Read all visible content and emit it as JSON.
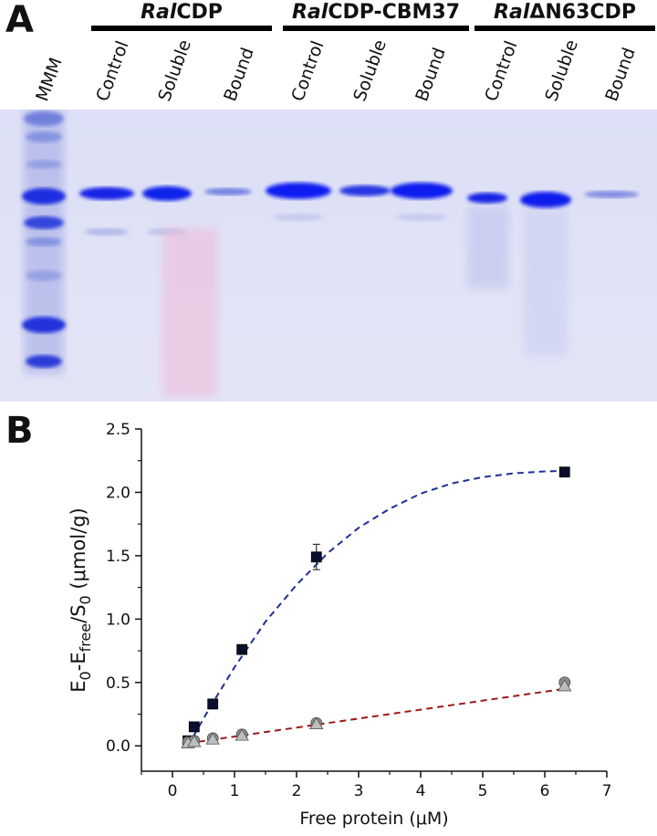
{
  "panel_a": {
    "letter": "A",
    "groups": [
      {
        "prefix": "Ral",
        "suffix": "CDP"
      },
      {
        "prefix": "Ral",
        "suffix": "CDP-CBM37"
      },
      {
        "prefix": "Ral",
        "suffix": "ΔN63CDP"
      }
    ],
    "lanes": [
      "MMM",
      "Control",
      "Soluble",
      "Bound",
      "Control",
      "Soluble",
      "Bound",
      "Control",
      "Soluble",
      "Bound"
    ]
  },
  "panel_b": {
    "letter": "B"
  },
  "chart_data": {
    "type": "scatter",
    "xlabel": "Free protein (μM)",
    "ylabel": "E0-Efree/S0 (μmol/g)",
    "ylabel_parts": {
      "a": "E",
      "a_sub": "0",
      "b": "-E",
      "b_sub": "free",
      "c": "/S",
      "c_sub": "0",
      "d": " (μmol/g)"
    },
    "xlim": [
      -0.5,
      7
    ],
    "ylim": [
      -0.2,
      2.5
    ],
    "xticks": [
      "0",
      "1",
      "2",
      "3",
      "4",
      "5",
      "6",
      "7"
    ],
    "yticks": [
      "0.0",
      "0.5",
      "1.0",
      "1.5",
      "2.0",
      "2.5"
    ],
    "xtick_values": [
      0,
      1,
      2,
      3,
      4,
      5,
      6,
      7
    ],
    "ytick_values": [
      0.0,
      0.5,
      1.0,
      1.5,
      2.0,
      2.5
    ],
    "series": [
      {
        "marker": "square",
        "color": "#0a0f2e",
        "x": [
          0.25,
          0.35,
          0.65,
          1.12,
          2.32,
          6.32
        ],
        "y": [
          0.04,
          0.15,
          0.33,
          0.76,
          1.49,
          2.16
        ],
        "err": [
          0,
          0,
          0,
          0,
          0.1,
          0
        ]
      },
      {
        "marker": "circle",
        "color": "#8c8c8c",
        "x": [
          0.25,
          0.35,
          0.65,
          1.12,
          2.32,
          6.32
        ],
        "y": [
          0.03,
          0.04,
          0.06,
          0.09,
          0.18,
          0.5
        ],
        "err": [
          0,
          0,
          0,
          0,
          0,
          0
        ]
      },
      {
        "marker": "triangle",
        "color": "#bdbdbd",
        "x": [
          0.25,
          0.35,
          0.65,
          1.12,
          2.32,
          6.32
        ],
        "y": [
          0.02,
          0.03,
          0.05,
          0.08,
          0.17,
          0.47
        ],
        "err": [
          0,
          0,
          0,
          0,
          0,
          0
        ]
      }
    ],
    "fits": [
      {
        "color": "#1f2d96",
        "style": "dashed",
        "x": [
          0.25,
          0.6,
          1.0,
          1.5,
          2.0,
          2.5,
          3.0,
          3.5,
          4.0,
          4.5,
          5.0,
          5.5,
          6.0,
          6.32
        ],
        "y": [
          0.0,
          0.3,
          0.62,
          0.98,
          1.27,
          1.52,
          1.72,
          1.87,
          1.99,
          2.07,
          2.12,
          2.15,
          2.165,
          2.17
        ]
      },
      {
        "color": "#a01818",
        "style": "dashed",
        "x": [
          0.25,
          6.32
        ],
        "y": [
          0.02,
          0.45
        ]
      }
    ]
  }
}
